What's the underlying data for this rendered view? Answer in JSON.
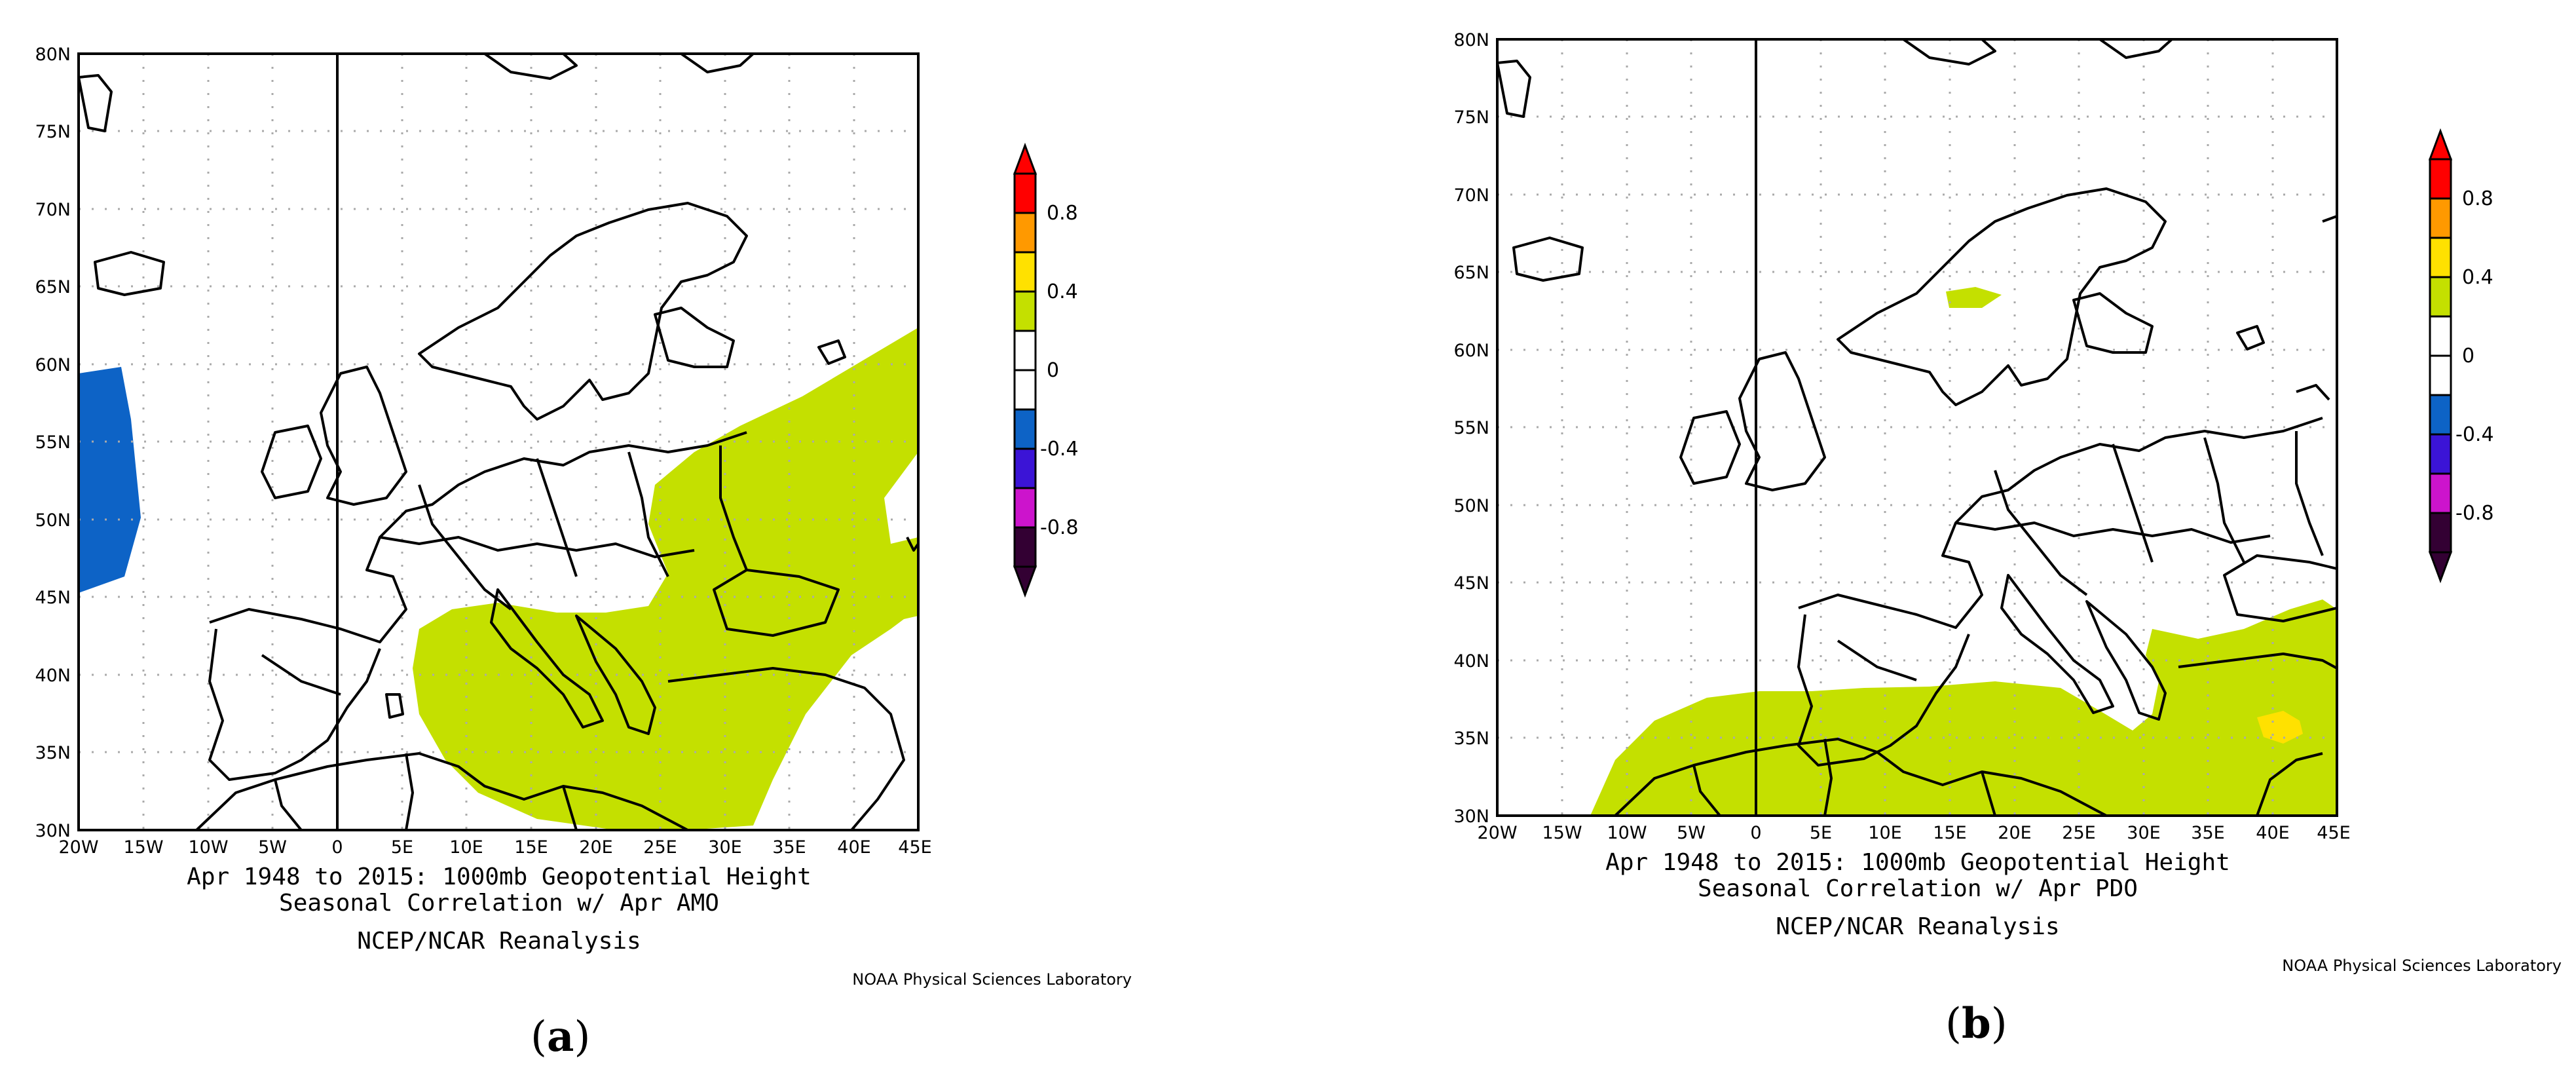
{
  "panels": [
    {
      "id": "a",
      "caption_letter": "a",
      "title_line1": "Apr 1948 to 2015: 1000mb Geopotential Height",
      "title_line2": "Seasonal Correlation w/ Apr AMO",
      "source": "NCEP/NCAR Reanalysis",
      "credit": "NOAA Physical Sciences Laboratory",
      "lat_labels": [
        "80N",
        "75N",
        "70N",
        "65N",
        "60N",
        "55N",
        "50N",
        "45N",
        "40N",
        "35N",
        "30N"
      ],
      "lon_labels": [
        "20W",
        "15W",
        "10W",
        "5W",
        "0",
        "5E",
        "10E",
        "15E",
        "20E",
        "25E",
        "30E",
        "35E",
        "40E",
        "45E"
      ],
      "colorbar_labels": [
        "0.8",
        "0.4",
        "0",
        "-0.4",
        "-0.8"
      ]
    },
    {
      "id": "b",
      "caption_letter": "b",
      "title_line1": "Apr 1948 to 2015: 1000mb Geopotential Height",
      "title_line2": "Seasonal Correlation w/ Apr PDO",
      "source": "NCEP/NCAR Reanalysis",
      "credit": "NOAA Physical Sciences Laboratory",
      "lat_labels": [
        "80N",
        "75N",
        "70N",
        "65N",
        "60N",
        "55N",
        "50N",
        "45N",
        "40N",
        "35N",
        "30N"
      ],
      "lon_labels": [
        "20W",
        "15W",
        "10W",
        "5W",
        "0",
        "5E",
        "10E",
        "15E",
        "20E",
        "25E",
        "30E",
        "35E",
        "40E",
        "45E"
      ],
      "colorbar_labels": [
        "0.8",
        "0.4",
        "0",
        "-0.4",
        "-0.8"
      ]
    }
  ],
  "map_extent": {
    "lon": [
      -20,
      45
    ],
    "lat": [
      30,
      80
    ]
  },
  "colorbar_colors": [
    "#ff0000",
    "#ff9900",
    "#ffe100",
    "#c4e000",
    "#ffffff",
    "#ffffff",
    "#0d63c6",
    "#3b14d6",
    "#cc14cc",
    "#330033"
  ],
  "fill_colors": {
    "positive_0.2_0.4": "#c4e000",
    "positive_0.4_0.6": "#ffe100",
    "negative_-0.4_-0.2": "#0d63c6"
  }
}
